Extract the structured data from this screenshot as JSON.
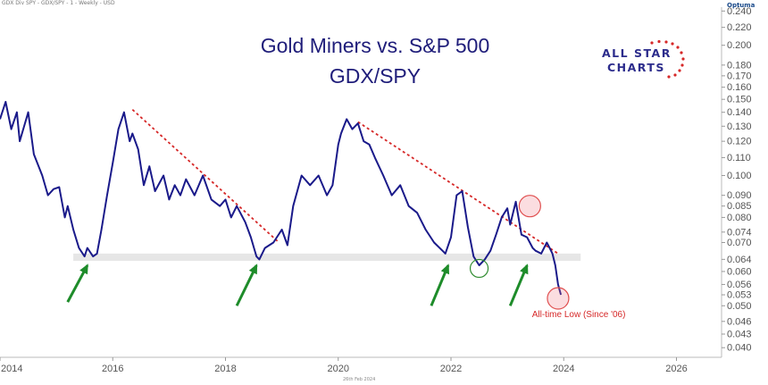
{
  "header": {
    "symbol_line": "GDX Div SPY - GDX/SPY - 1 - Weekly - USD",
    "brand": "Optuma",
    "date_stamp": "26th Feb 2024"
  },
  "logo": {
    "line1": "ALL STAR",
    "line2": "CHARTS"
  },
  "colors": {
    "series": "#1a1a8a",
    "trendline": "#d62828",
    "arrow": "#1e8c2a",
    "band": "#e6e6e6",
    "axis_text": "#555555"
  },
  "chart_data": {
    "type": "line",
    "title": "Gold Miners vs. S&P 500",
    "subtitle": "GDX/SPY",
    "y_scale": "log",
    "xlim": [
      2014.0,
      2026.8
    ],
    "ylim": [
      0.038,
      0.245
    ],
    "x_ticks": [
      "2014",
      "2016",
      "2018",
      "2020",
      "2022",
      "2024",
      "2026"
    ],
    "y_ticks": [
      "0.240",
      "0.220",
      "0.200",
      "0.180",
      "0.170",
      "0.160",
      "0.150",
      "0.140",
      "0.130",
      "0.120",
      "0.110",
      "0.100",
      "0.090",
      "0.085",
      "0.080",
      "0.074",
      "0.070",
      "0.064",
      "0.060",
      "0.056",
      "0.053",
      "0.050",
      "0.046",
      "0.043",
      "0.040"
    ],
    "grid": false,
    "series": [
      {
        "x": [
          2014.0,
          2014.1,
          2014.2,
          2014.3,
          2014.35,
          2014.5,
          2014.6,
          2014.75,
          2014.85,
          2014.95,
          2015.05,
          2015.15,
          2015.2,
          2015.3,
          2015.4,
          2015.5,
          2015.55,
          2015.65,
          2015.72,
          2015.8,
          2015.9,
          2016.0,
          2016.1,
          2016.2,
          2016.3,
          2016.35,
          2016.45,
          2016.55,
          2016.65,
          2016.75,
          2016.9,
          2017.0,
          2017.1,
          2017.2,
          2017.3,
          2017.45,
          2017.6,
          2017.75,
          2017.9,
          2018.0,
          2018.1,
          2018.2,
          2018.35,
          2018.45,
          2018.55,
          2018.6,
          2018.7,
          2018.85,
          2019.0,
          2019.1,
          2019.2,
          2019.35,
          2019.5,
          2019.65,
          2019.8,
          2019.9,
          2020.0,
          2020.05,
          2020.15,
          2020.25,
          2020.35,
          2020.45,
          2020.55,
          2020.65,
          2020.8,
          2020.95,
          2021.1,
          2021.25,
          2021.4,
          2021.55,
          2021.7,
          2021.85,
          2021.9,
          2022.0,
          2022.1,
          2022.2,
          2022.3,
          2022.4,
          2022.5,
          2022.6,
          2022.7,
          2022.8,
          2022.9,
          2023.0,
          2023.05,
          2023.15,
          2023.25,
          2023.35,
          2023.45,
          2023.5,
          2023.6,
          2023.7,
          2023.75,
          2023.8,
          2023.85,
          2023.9,
          2023.95
        ],
        "y": [
          0.135,
          0.148,
          0.128,
          0.14,
          0.12,
          0.14,
          0.112,
          0.1,
          0.09,
          0.093,
          0.094,
          0.08,
          0.085,
          0.075,
          0.068,
          0.065,
          0.068,
          0.065,
          0.066,
          0.075,
          0.09,
          0.107,
          0.128,
          0.14,
          0.12,
          0.125,
          0.115,
          0.095,
          0.105,
          0.092,
          0.1,
          0.088,
          0.095,
          0.09,
          0.098,
          0.09,
          0.1,
          0.088,
          0.085,
          0.088,
          0.08,
          0.085,
          0.078,
          0.072,
          0.065,
          0.064,
          0.068,
          0.07,
          0.075,
          0.069,
          0.085,
          0.1,
          0.095,
          0.1,
          0.09,
          0.095,
          0.118,
          0.125,
          0.135,
          0.128,
          0.132,
          0.12,
          0.118,
          0.11,
          0.1,
          0.09,
          0.095,
          0.085,
          0.082,
          0.075,
          0.07,
          0.067,
          0.066,
          0.072,
          0.09,
          0.092,
          0.076,
          0.065,
          0.062,
          0.064,
          0.067,
          0.073,
          0.08,
          0.084,
          0.077,
          0.087,
          0.073,
          0.072,
          0.068,
          0.067,
          0.066,
          0.07,
          0.068,
          0.066,
          0.062,
          0.056,
          0.053
        ],
        "color": "#1a1a8a"
      }
    ],
    "trendlines": [
      {
        "x": [
          2016.35,
          2018.95
        ],
        "y": [
          0.142,
          0.07
        ]
      },
      {
        "x": [
          2020.35,
          2023.9
        ],
        "y": [
          0.133,
          0.066
        ]
      }
    ],
    "support_band": {
      "x": [
        2015.3,
        2024.3
      ],
      "y": [
        0.0635,
        0.066
      ]
    },
    "circles": [
      {
        "x": 2022.5,
        "y": 0.061,
        "color": "#2e8b2e"
      },
      {
        "x": 2023.4,
        "y": 0.085,
        "color": "#e05050"
      },
      {
        "x": 2023.9,
        "y": 0.052,
        "color": "#e05050"
      }
    ],
    "arrows": [
      {
        "x_from": 2015.2,
        "y_from": 0.051,
        "x_to": 2015.55,
        "y_to": 0.062
      },
      {
        "x_from": 2018.2,
        "y_from": 0.05,
        "x_to": 2018.55,
        "y_to": 0.062
      },
      {
        "x_from": 2021.65,
        "y_from": 0.05,
        "x_to": 2021.95,
        "y_to": 0.062
      },
      {
        "x_from": 2023.05,
        "y_from": 0.05,
        "x_to": 2023.35,
        "y_to": 0.062
      }
    ],
    "annotations": [
      {
        "text": "All-time Low (Since '06)",
        "x": 2023.95,
        "y": 0.048,
        "color": "#d62828"
      }
    ]
  }
}
